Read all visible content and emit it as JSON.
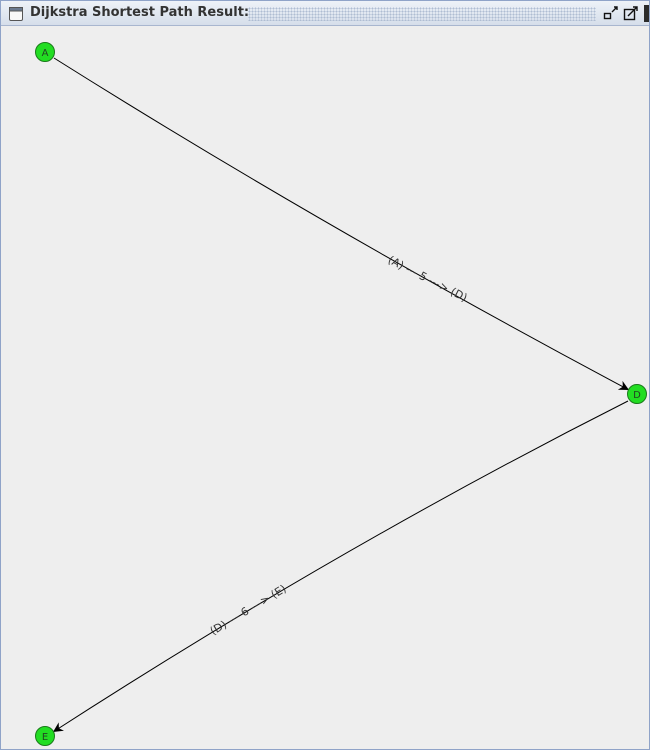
{
  "window": {
    "title": "Dijkstra Shortest Path Result:"
  },
  "graph": {
    "nodes": [
      {
        "id": "A",
        "label": "A"
      },
      {
        "id": "D",
        "label": "D"
      },
      {
        "id": "E",
        "label": "E"
      }
    ],
    "edges": [
      {
        "from": "A",
        "to": "D",
        "weight": 5,
        "label": "(A) --- 5 ---> (D)"
      },
      {
        "from": "D",
        "to": "E",
        "weight": 6,
        "label": "(D) --- 6 ---> (E)"
      }
    ]
  },
  "colors": {
    "node_fill": "#22dd22",
    "node_stroke": "#1a7a1a",
    "edge": "#000000",
    "edge_label": "#333333"
  }
}
